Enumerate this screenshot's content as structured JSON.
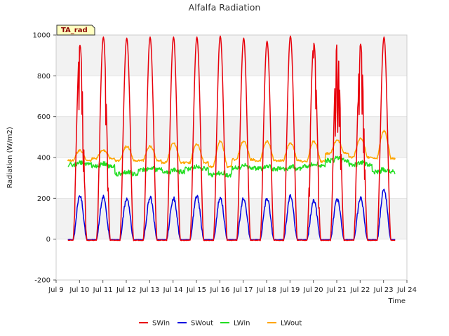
{
  "chart_data": {
    "type": "line",
    "title": "Alfalfa Radiation",
    "xlabel": "Time",
    "ylabel": "Radiation (W/m2)",
    "badge": "TA_rad",
    "xlim": [
      9,
      24
    ],
    "ylim": [
      -200,
      1000
    ],
    "x_ticks": [
      9,
      10,
      11,
      12,
      13,
      14,
      15,
      16,
      17,
      18,
      19,
      20,
      21,
      22,
      23,
      24
    ],
    "x_tick_labels": [
      "Jul 9",
      "Jul 10",
      "Jul 11",
      "Jul 12",
      "Jul 13",
      "Jul 14",
      "Jul 15",
      "Jul 16",
      "Jul 17",
      "Jul 18",
      "Jul 19",
      "Jul 20",
      "Jul 21",
      "Jul 22",
      "Jul 23",
      "Jul 24"
    ],
    "y_ticks": [
      -200,
      0,
      200,
      400,
      600,
      800,
      1000
    ],
    "y_tick_labels": [
      "-200",
      "0",
      "200",
      "400",
      "600",
      "800",
      "1000"
    ],
    "grid": true,
    "legend_position": "bottom",
    "days": [
      {
        "day": "Jul 9",
        "sw_peak": 950,
        "sw_out_peak": 215,
        "lw_in": 365,
        "lw_out_night": 385,
        "lw_out_day": 435
      },
      {
        "day": "Jul 10",
        "sw_peak": 990,
        "sw_out_peak": 210,
        "lw_in": 360,
        "lw_out_night": 395,
        "lw_out_day": 435
      },
      {
        "day": "Jul 11",
        "sw_peak": 985,
        "sw_out_peak": 200,
        "lw_in": 320,
        "lw_out_night": 385,
        "lw_out_day": 455
      },
      {
        "day": "Jul 12",
        "sw_peak": 990,
        "sw_out_peak": 205,
        "lw_in": 340,
        "lw_out_night": 385,
        "lw_out_day": 455
      },
      {
        "day": "Jul 13",
        "sw_peak": 990,
        "sw_out_peak": 200,
        "lw_in": 330,
        "lw_out_night": 375,
        "lw_out_day": 470
      },
      {
        "day": "Jul 14",
        "sw_peak": 990,
        "sw_out_peak": 210,
        "lw_in": 345,
        "lw_out_night": 375,
        "lw_out_day": 465
      },
      {
        "day": "Jul 15",
        "sw_peak": 995,
        "sw_out_peak": 205,
        "lw_in": 315,
        "lw_out_night": 355,
        "lw_out_day": 480
      },
      {
        "day": "Jul 16",
        "sw_peak": 985,
        "sw_out_peak": 200,
        "lw_in": 350,
        "lw_out_night": 390,
        "lw_out_day": 480
      },
      {
        "day": "Jul 17",
        "sw_peak": 970,
        "sw_out_peak": 200,
        "lw_in": 345,
        "lw_out_night": 385,
        "lw_out_day": 480
      },
      {
        "day": "Jul 18",
        "sw_peak": 995,
        "sw_out_peak": 210,
        "lw_in": 345,
        "lw_out_night": 385,
        "lw_out_day": 470
      },
      {
        "day": "Jul 19",
        "sw_peak": 960,
        "sw_out_peak": 190,
        "lw_in": 360,
        "lw_out_night": 380,
        "lw_out_day": 480
      },
      {
        "day": "Jul 20",
        "sw_peak": 960,
        "sw_out_peak": 195,
        "lw_in": 385,
        "lw_out_night": 420,
        "lw_out_day": 485
      },
      {
        "day": "Jul 21",
        "sw_peak": 955,
        "sw_out_peak": 200,
        "lw_in": 365,
        "lw_out_night": 400,
        "lw_out_day": 495
      },
      {
        "day": "Jul 22",
        "sw_peak": 990,
        "sw_out_peak": 245,
        "lw_in": 330,
        "lw_out_night": 395,
        "lw_out_day": 530
      }
    ],
    "series": [
      {
        "name": "SWin",
        "color": "#e8000b"
      },
      {
        "name": "SWout",
        "color": "#0000e0"
      },
      {
        "name": "LWin",
        "color": "#22dd22"
      },
      {
        "name": "LWout",
        "color": "#ffa500"
      }
    ]
  }
}
